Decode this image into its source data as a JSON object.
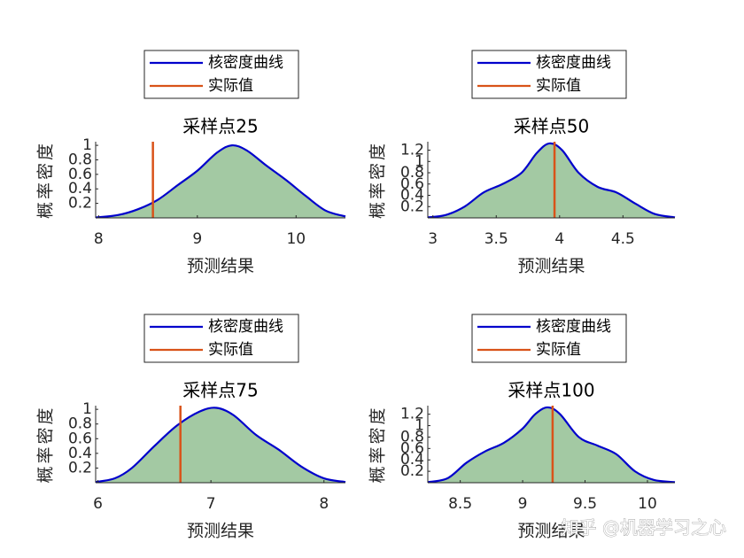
{
  "chart_data": [
    {
      "type": "area",
      "title": "采样点25",
      "x_label": "预测结果",
      "y_label": "概率密度",
      "xlim": [
        7.97,
        10.5
      ],
      "xticks": [
        8,
        9,
        10
      ],
      "ylim": [
        0,
        1.05
      ],
      "yticks": [
        0.2,
        0.4,
        0.6,
        0.8,
        1
      ],
      "series": [
        {
          "name": "核密度曲线",
          "color": "#0000cc",
          "fill": "#a3c9a3",
          "x": [
            7.97,
            8.2,
            8.4,
            8.6,
            8.8,
            9.0,
            9.2,
            9.35,
            9.5,
            9.7,
            9.9,
            10.1,
            10.3,
            10.5
          ],
          "values": [
            0.005,
            0.04,
            0.12,
            0.25,
            0.45,
            0.65,
            0.9,
            1.0,
            0.93,
            0.72,
            0.52,
            0.3,
            0.1,
            0.02
          ]
        },
        {
          "name": "实际值",
          "color": "#d95319",
          "x": [
            8.55
          ]
        }
      ]
    },
    {
      "type": "area",
      "title": "采样点50",
      "x_label": "预测结果",
      "y_label": "概率密度",
      "xlim": [
        2.96,
        4.91
      ],
      "xticks": [
        3,
        3.5,
        4,
        4.5
      ],
      "ylim": [
        0,
        1.35
      ],
      "yticks": [
        0.2,
        0.4,
        0.6,
        0.8,
        1,
        1.2
      ],
      "series": [
        {
          "name": "核密度曲线",
          "color": "#0000cc",
          "fill": "#a3c9a3",
          "x": [
            2.96,
            3.1,
            3.25,
            3.4,
            3.55,
            3.7,
            3.82,
            3.92,
            4.02,
            4.15,
            4.3,
            4.45,
            4.6,
            4.75,
            4.91
          ],
          "values": [
            0.01,
            0.05,
            0.2,
            0.45,
            0.6,
            0.8,
            1.15,
            1.32,
            1.2,
            0.8,
            0.55,
            0.45,
            0.25,
            0.07,
            0.01
          ]
        },
        {
          "name": "实际值",
          "color": "#d95319",
          "x": [
            3.96
          ]
        }
      ]
    },
    {
      "type": "area",
      "title": "采样点75",
      "x_label": "预测结果",
      "y_label": "概率密度",
      "xlim": [
        5.98,
        8.19
      ],
      "xticks": [
        6,
        7,
        8
      ],
      "ylim": [
        0,
        1.05
      ],
      "yticks": [
        0.2,
        0.4,
        0.6,
        0.8,
        1
      ],
      "series": [
        {
          "name": "核密度曲线",
          "color": "#0000cc",
          "fill": "#a3c9a3",
          "x": [
            5.98,
            6.15,
            6.3,
            6.5,
            6.7,
            6.9,
            7.05,
            7.2,
            7.4,
            7.6,
            7.8,
            8.0,
            8.19
          ],
          "values": [
            0.01,
            0.06,
            0.2,
            0.5,
            0.78,
            0.97,
            1.02,
            0.92,
            0.65,
            0.45,
            0.22,
            0.06,
            0.01
          ]
        },
        {
          "name": "实际值",
          "color": "#d95319",
          "x": [
            6.73
          ]
        }
      ]
    },
    {
      "type": "area",
      "title": "采样点100",
      "x_label": "预测结果",
      "y_label": "概率密度",
      "xlim": [
        8.24,
        10.22
      ],
      "xticks": [
        8.5,
        9,
        9.5,
        10
      ],
      "ylim": [
        0,
        1.35
      ],
      "yticks": [
        0.2,
        0.4,
        0.6,
        0.8,
        1,
        1.2
      ],
      "series": [
        {
          "name": "核密度曲线",
          "color": "#0000cc",
          "fill": "#a3c9a3",
          "x": [
            8.24,
            8.4,
            8.55,
            8.7,
            8.85,
            9.0,
            9.1,
            9.2,
            9.3,
            9.45,
            9.6,
            9.75,
            9.9,
            10.05,
            10.22
          ],
          "values": [
            0.01,
            0.08,
            0.35,
            0.55,
            0.7,
            0.95,
            1.2,
            1.32,
            1.2,
            0.8,
            0.65,
            0.5,
            0.2,
            0.05,
            0.01
          ]
        },
        {
          "name": "实际值",
          "color": "#d95319",
          "x": [
            9.24
          ]
        }
      ]
    }
  ],
  "watermark": "知乎 @机器学习之心"
}
